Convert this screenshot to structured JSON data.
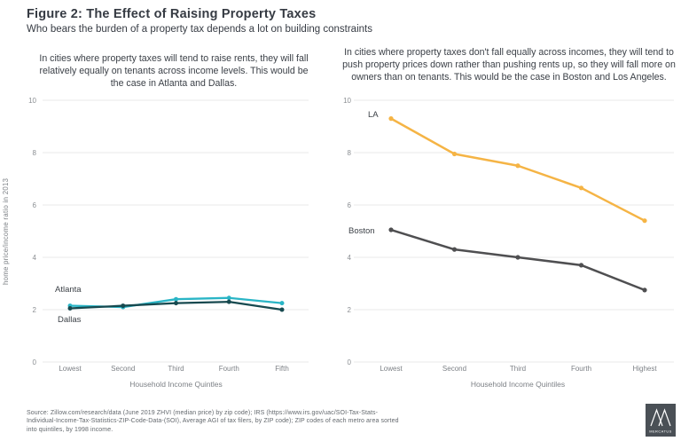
{
  "header": {
    "title": "Figure 2: The Effect of Raising Property Taxes",
    "subtitle": "Who bears the burden of a property tax depends a lot on building constraints"
  },
  "chart_data": [
    {
      "type": "line",
      "annotation": "In cities where property taxes will tend to raise rents, they will fall relatively equally on tenants across income levels. This would be the case in Atlanta and Dallas.",
      "categories": [
        "Lowest",
        "Second",
        "Third",
        "Fourth",
        "Fifth"
      ],
      "series": [
        {
          "name": "Atlanta",
          "color": "#2ab5c6",
          "values": [
            2.15,
            2.1,
            2.4,
            2.45,
            2.25
          ]
        },
        {
          "name": "Dallas",
          "color": "#17494f",
          "values": [
            2.05,
            2.15,
            2.25,
            2.3,
            2.0
          ]
        }
      ],
      "xlabel": "Household Income Quintles",
      "ylabel": "home price/income ratio in 2013",
      "ylim": [
        0,
        10
      ],
      "ytick_step": 2,
      "grid": true,
      "legend_position": "inline-labels"
    },
    {
      "type": "line",
      "annotation": "In cities where property taxes don't fall equally across incomes, they will tend to push property prices down rather than pushing rents up, so they will fall more on owners than on tenants. This would be the case in Boston and Los Angeles.",
      "categories": [
        "Lowest",
        "Second",
        "Third",
        "Fourth",
        "Highest"
      ],
      "series": [
        {
          "name": "LA",
          "color": "#f5b445",
          "values": [
            9.3,
            7.95,
            7.5,
            6.65,
            5.4
          ]
        },
        {
          "name": "Boston",
          "color": "#4f4f51",
          "values": [
            5.05,
            4.3,
            4.0,
            3.7,
            2.75
          ]
        }
      ],
      "xlabel": "Household Income Quintiles",
      "ylabel": "",
      "ylim": [
        0,
        10
      ],
      "ytick_step": 2,
      "grid": true,
      "legend_position": "inline-labels"
    }
  ],
  "footer": {
    "source_lines": [
      "Source: Zillow.com/research/data (June 2019 ZHVI (median price) by zip code); IRS (https://www.irs.gov/uac/SOI-Tax-Stats-",
      "Individual-Income-Tax-Statistics-ZIP-Code-Data-(SOI), Average AGI of tax filers, by ZIP code); ZIP codes of each metro area sorted",
      "into quintiles, by 1998 income."
    ],
    "logo_text": "MERCATUS"
  },
  "colors": {
    "grid_line": "#e9e9e9",
    "tick_label": "#8b8f93",
    "category_label": "#7d8186",
    "axis_title": "#7d8186",
    "series_label": "#3c4147",
    "logo_bg": "#4a5056"
  }
}
